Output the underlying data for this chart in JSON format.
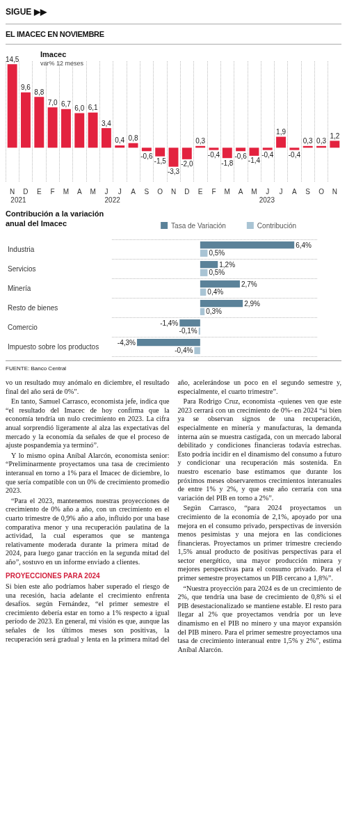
{
  "chart_data": [
    {
      "type": "bar",
      "title": "EL IMACEC EN NOVIEMBRE",
      "subtitle": "Imacec",
      "ylabel": "var% 12 meses",
      "categories": [
        "N",
        "D",
        "E",
        "F",
        "M",
        "A",
        "M",
        "J",
        "J",
        "A",
        "S",
        "O",
        "N",
        "D",
        "E",
        "F",
        "M",
        "A",
        "M",
        "J",
        "J",
        "A",
        "S",
        "O",
        "N"
      ],
      "values": [
        14.5,
        9.6,
        8.8,
        7.0,
        6.7,
        6.0,
        6.1,
        3.4,
        0.4,
        0.8,
        -0.6,
        -1.5,
        -3.3,
        -2.0,
        0.3,
        -0.4,
        -1.8,
        -0.6,
        -1.4,
        -0.4,
        1.9,
        -0.4,
        0.3,
        0.3,
        1.2
      ],
      "value_labels": [
        "14,5",
        "9,6",
        "8,8",
        "7,0",
        "6,7",
        "6,0",
        "6,1",
        "3,4",
        "0,4",
        "0,8",
        "-0,6",
        "-1,5",
        "-3,3",
        "-2,0",
        "0,3",
        "-0,4",
        "-1,8",
        "-0,6",
        "-1,4",
        "-0,4",
        "1,9",
        "-0,4",
        "0,3",
        "0,3",
        "1,2"
      ],
      "color": "#e3223f",
      "grid": "x",
      "annotations": [
        "SIGUE ▶▶",
        "2021",
        "2022",
        "2023"
      ]
    },
    {
      "type": "bar",
      "orientation": "horizontal",
      "title": "Contribución a la variación anual del Imacec",
      "categories": [
        "Industria",
        "Servicios",
        "Minería",
        "Resto de bienes",
        "Comercio",
        "Impuesto sobre los productos"
      ],
      "series": [
        {
          "name": "Tasa de Variación",
          "color": "#5b8299",
          "values": [
            6.4,
            1.2,
            2.7,
            2.9,
            -1.4,
            -4.3
          ],
          "value_labels": [
            "6,4%",
            "1,2%",
            "2,7%",
            "2,9%",
            "-1,4%",
            "-4,3%"
          ]
        },
        {
          "name": "Contribución",
          "color": "#a9c4d4",
          "values": [
            0.5,
            0.5,
            0.4,
            0.3,
            -0.1,
            -0.4
          ],
          "value_labels": [
            "0,5%",
            "0,5%",
            "0,4%",
            "0,3%",
            "-0,1%",
            "-0,4%"
          ]
        }
      ],
      "legend": "top right",
      "grid": "y",
      "annotations": [
        "FUENTE: Banco Central"
      ]
    },
    {
      "type": "other",
      "annotations": [
        "vo un resultado muy anómalo en diciembre, el resultado final del año será de 0%”.",
        "En tanto, Samuel Carrasco, economista jefe, indica que “el resultado del Imacec de hoy confirma que la economía tendría un nulo crecimiento en 2023. La cifra anual sorprendió ligeramente al alza las expectativas del mercado y la economía da señales de que el proceso de ajuste pospandemia ya terminó”.",
        "Y lo mismo opina Aníbal Alarcón, economista senior: “Preliminarmente proyectamos una tasa de crecimiento interanual en torno a 1% para el Imacec de diciembre, lo que sería compatible con un 0% de crecimiento promedio 2023.",
        "“Para el 2023, mantenemos nuestras proyecciones de crecimiento de 0% año a año, con un crecimiento en el cuarto trimestre de 0,9% año a año, influido por una base comparativa menor y una recuperación paulatina de la actividad, la cual esperamos que se mantenga relativamente moderada durante la primera mitad de 2024, para luego ganar tracción en la segunda mitad del año”, sostuvo en un informe enviado a clientes."
      ]
    },
    {
      "type": "other",
      "title": "PROYECCIONES PARA 2024",
      "annotations": [
        "Si bien este año podríamos haber superado el riesgo de una recesión, hacia adelante el crecimiento enfrenta desafíos. según Fernández, “el primer semestre el crecimiento debería estar en torno a 1% respecto a igual período de 2023. En general, mi visión es que, aunque las señales de los últimos meses son positivas, la recuperación será gradual y lenta en la primera mitad del año, acelerándose un poco en el segundo semestre y, especialmente, el cuarto trimestre”.",
        "Para Rodrigo Cruz, economista -quienes ven que este 2023 cerrará con un crecimiento de 0%- en 2024 “si bien ya se observan signos de una recuperación, especialmente en minería y manufacturas, la demanda interna aún se muestra castigada, con un mercado laboral debilitado y condiciones financieras todavía estrechas. Esto podría incidir en el dinamismo del consumo a futuro y condicionar una recuperación más sostenida. En nuestro escenario base estimamos que durante los próximos meses observaremos crecimientos interanuales de entre 1% y 2%, y que este año cerraría con una variación del PIB en torno a 2%”.",
        "Según Carrasco, “para 2024 proyectamos un crecimiento de la economía de 2,1%, apoyado por una mejora en el consumo privado, perspectivas de inversión menos pesimistas y una mejora en las condiciones financieras. Proyectamos un primer trimestre creciendo 1,5% anual producto de positivas perspectivas para el sector energético, una mayor producción minera y mejores perspectivas para el consumo privado. Para el primer semestre proyectamos un PIB cercano a 1,8%”.",
        "“Nuestra proyección para 2024 es de un crecimiento de 2%, que tendría una base de crecimiento de 0,8% si el PIB desestacionalizado se mantiene estable. El resto para llegar al 2% que proyectamos vendría por un leve dinamismo en el PIB no minero y una mayor expansión del PIB minero. Para el primer semestre proyectamos una tasa de crecimiento interanual entre 1,5% y 2%”, estima Aníbal Alarcón."
      ]
    }
  ]
}
